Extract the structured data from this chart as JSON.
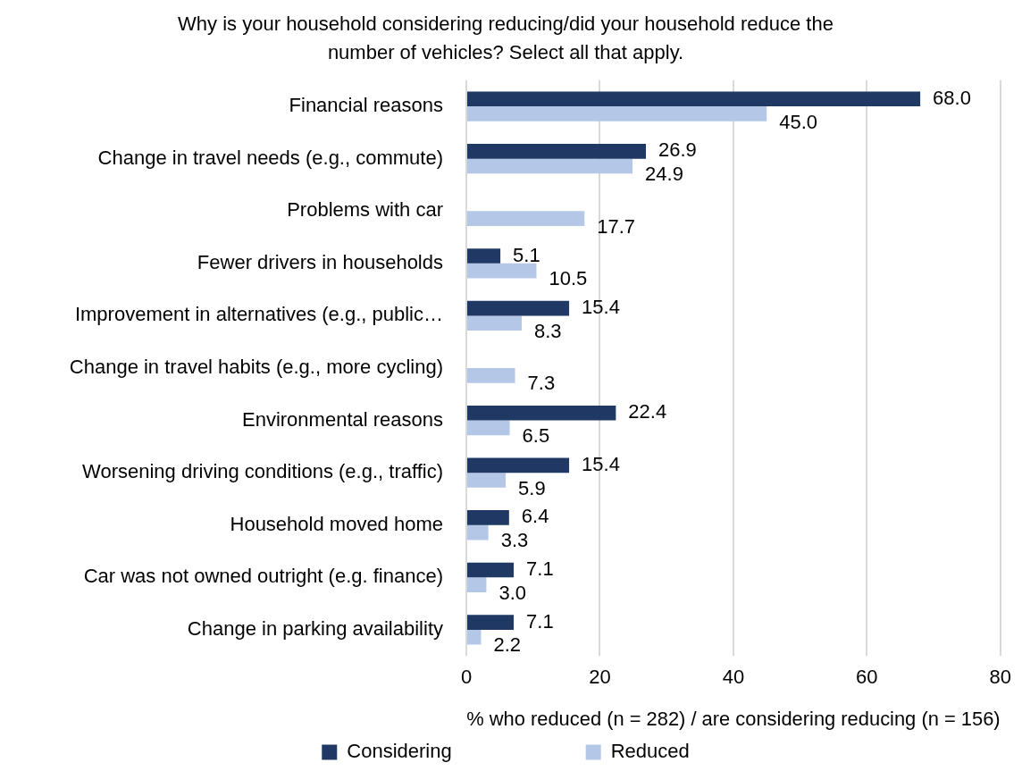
{
  "chart_data": {
    "type": "bar",
    "orientation": "horizontal",
    "title": "Why is your household considering reducing/did your household reduce the number of vehicles? Select all that apply.",
    "xlabel": "% who reduced (n = 282) / are considering reducing (n = 156)",
    "categories": [
      "Financial reasons",
      "Change in travel needs (e.g., commute)",
      "Problems with car",
      "Fewer drivers in households",
      "Improvement in alternatives (e.g., public…",
      "Change in travel habits (e.g., more cycling)",
      "Environmental reasons",
      "Worsening driving conditions (e.g., traffic)",
      "Household moved home",
      "Car was not owned outright (e.g. finance)",
      "Change in parking availability"
    ],
    "series": [
      {
        "name": "Considering",
        "color": "#1f3864",
        "values": [
          68.0,
          26.9,
          null,
          5.1,
          15.4,
          null,
          22.4,
          15.4,
          6.4,
          7.1,
          7.1
        ],
        "value_labels": [
          "68.0",
          "26.9",
          null,
          "5.1",
          "15.4",
          null,
          "22.4",
          "15.4",
          "6.4",
          "7.1",
          "7.1"
        ]
      },
      {
        "name": "Reduced",
        "color": "#b4c7e7",
        "values": [
          45.0,
          24.9,
          17.7,
          10.5,
          8.3,
          7.3,
          6.5,
          5.9,
          3.3,
          3.0,
          2.2
        ],
        "value_labels": [
          "45.0",
          "24.9",
          "17.7",
          "10.5",
          "8.3",
          "7.3",
          "6.5",
          "5.9",
          "3.3",
          "3.0",
          "2.2"
        ]
      }
    ],
    "xlim": [
      0,
      80
    ],
    "xticks": [
      0,
      20,
      40,
      60,
      80
    ],
    "grid": "x",
    "legend": "bottom"
  }
}
